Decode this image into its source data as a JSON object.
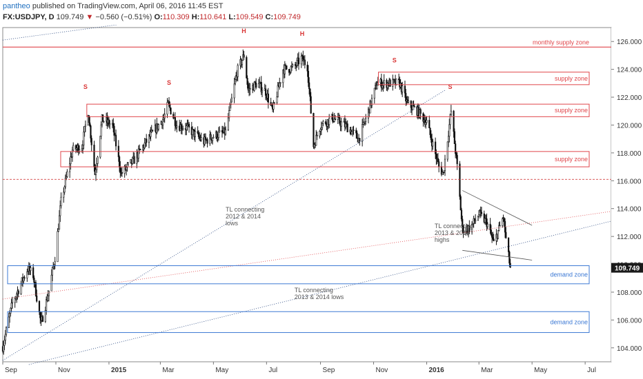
{
  "header": {
    "author": "pantheo",
    "published_text": "published on TradingView.com, April 06, 2016 11:45 EST",
    "symbol": "FX:USDJPY, D",
    "last": "109.749",
    "arrow": "▼",
    "change": "−0.560 (−0.51%)",
    "o_label": "O:",
    "o_value": "110.309",
    "h_label": "H:",
    "h_value": "110.641",
    "l_label": "L:",
    "l_value": "109.549",
    "c_label": "C:",
    "c_value": "109.749"
  },
  "chart_data": {
    "type": "candlestick",
    "title": "",
    "x_range": [
      "2014-09-01",
      "2016-07-31"
    ],
    "ylim": [
      103,
      127
    ],
    "y_ticks": [
      104,
      106,
      108,
      110,
      112,
      114,
      116,
      118,
      120,
      122,
      124,
      126
    ],
    "x_ticks": [
      {
        "label": "Sep",
        "date": "2014-09-01"
      },
      {
        "label": "Nov",
        "date": "2014-11-01"
      },
      {
        "label": "2015",
        "date": "2015-01-01"
      },
      {
        "label": "Mar",
        "date": "2015-03-01"
      },
      {
        "label": "May",
        "date": "2015-05-01"
      },
      {
        "label": "Jul",
        "date": "2015-07-01"
      },
      {
        "label": "Sep",
        "date": "2015-09-01"
      },
      {
        "label": "Nov",
        "date": "2015-11-01"
      },
      {
        "label": "2016",
        "date": "2016-01-01"
      },
      {
        "label": "Mar",
        "date": "2016-03-01"
      },
      {
        "label": "May",
        "date": "2016-05-01"
      },
      {
        "label": "Jul",
        "date": "2016-07-01"
      }
    ],
    "last_price_label": "109.749",
    "price_path": [
      [
        "2014-09-01",
        104.1
      ],
      [
        "2014-09-12",
        107.2
      ],
      [
        "2014-09-24",
        108.9
      ],
      [
        "2014-09-30",
        109.7
      ],
      [
        "2014-10-06",
        109.2
      ],
      [
        "2014-10-15",
        105.7
      ],
      [
        "2014-10-24",
        108.1
      ],
      [
        "2014-10-31",
        110.5
      ],
      [
        "2014-11-07",
        114.5
      ],
      [
        "2014-11-20",
        118.2
      ],
      [
        "2014-12-01",
        118.5
      ],
      [
        "2014-12-08",
        121.0
      ],
      [
        "2014-12-16",
        116.5
      ],
      [
        "2014-12-24",
        120.4
      ],
      [
        "2015-01-05",
        120.0
      ],
      [
        "2015-01-15",
        116.5
      ],
      [
        "2015-01-30",
        117.5
      ],
      [
        "2015-02-15",
        119.0
      ],
      [
        "2015-03-05",
        120.5
      ],
      [
        "2015-03-10",
        121.5
      ],
      [
        "2015-03-20",
        120.0
      ],
      [
        "2015-04-01",
        119.8
      ],
      [
        "2015-04-20",
        118.8
      ],
      [
        "2015-05-01",
        119.2
      ],
      [
        "2015-05-15",
        119.5
      ],
      [
        "2015-05-28",
        123.8
      ],
      [
        "2015-06-05",
        125.0
      ],
      [
        "2015-06-10",
        122.5
      ],
      [
        "2015-06-20",
        123.0
      ],
      [
        "2015-06-30",
        122.4
      ],
      [
        "2015-07-08",
        121.0
      ],
      [
        "2015-07-20",
        124.0
      ],
      [
        "2015-08-01",
        124.1
      ],
      [
        "2015-08-10",
        124.8
      ],
      [
        "2015-08-17",
        124.2
      ],
      [
        "2015-08-24",
        118.5
      ],
      [
        "2015-09-01",
        120.0
      ],
      [
        "2015-09-15",
        120.5
      ],
      [
        "2015-10-01",
        119.9
      ],
      [
        "2015-10-15",
        119.0
      ],
      [
        "2015-10-25",
        120.8
      ],
      [
        "2015-11-05",
        123.0
      ],
      [
        "2015-11-20",
        123.0
      ],
      [
        "2015-12-01",
        123.0
      ],
      [
        "2015-12-10",
        121.5
      ],
      [
        "2015-12-20",
        121.1
      ],
      [
        "2016-01-01",
        120.2
      ],
      [
        "2016-01-15",
        117.0
      ],
      [
        "2016-01-20",
        116.5
      ],
      [
        "2016-01-29",
        121.0
      ],
      [
        "2016-02-05",
        117.0
      ],
      [
        "2016-02-11",
        112.5
      ],
      [
        "2016-02-20",
        112.6
      ],
      [
        "2016-03-01",
        113.6
      ],
      [
        "2016-03-10",
        113.0
      ],
      [
        "2016-03-18",
        111.5
      ],
      [
        "2016-03-29",
        113.4
      ],
      [
        "2016-04-01",
        111.8
      ],
      [
        "2016-04-06",
        109.749
      ]
    ],
    "pattern_labels": [
      {
        "text": "S",
        "date": "2014-12-05",
        "price": 122.6
      },
      {
        "text": "S",
        "date": "2015-03-11",
        "price": 122.9
      },
      {
        "text": "H",
        "date": "2015-06-05",
        "price": 126.6
      },
      {
        "text": "H",
        "date": "2015-08-11",
        "price": 126.4
      },
      {
        "text": "S",
        "date": "2015-11-25",
        "price": 124.5
      },
      {
        "text": "S",
        "date": "2016-01-28",
        "price": 122.6
      }
    ],
    "zones": [
      {
        "label": "monthly supply zone",
        "kind": "line",
        "price": 125.6,
        "color": "#e0454a"
      },
      {
        "label": "supply zone",
        "kind": "box",
        "from": 122.9,
        "to": 123.8,
        "start": "2015-11-01",
        "color": "#e0454a"
      },
      {
        "label": "supply zone",
        "kind": "box",
        "from": 120.6,
        "to": 121.5,
        "start": "2014-12-01",
        "color": "#e0454a"
      },
      {
        "label": "supply zone",
        "kind": "box",
        "from": 117.0,
        "to": 118.1,
        "start": "2014-11-01",
        "color": "#e0454a"
      },
      {
        "label": "demand zone",
        "kind": "box",
        "from": 108.6,
        "to": 109.9,
        "start": "2014-09-01",
        "color": "#3b78d4"
      },
      {
        "label": "demand zone",
        "kind": "box",
        "from": 105.1,
        "to": 106.6,
        "start": "2014-09-01",
        "color": "#3b78d4"
      }
    ],
    "annotations": [
      {
        "lines": [
          "TL connecting",
          "2012 & 2014",
          "lows"
        ],
        "date": "2015-05-15",
        "price": 113.8
      },
      {
        "lines": [
          "TL connecting",
          "2013 & 2014",
          "highs"
        ],
        "date": "2016-01-10",
        "price": 112.6
      },
      {
        "lines": [
          "TL connecting",
          "2013 & 2014 lows"
        ],
        "date": "2015-08-02",
        "price": 108.0
      }
    ]
  }
}
